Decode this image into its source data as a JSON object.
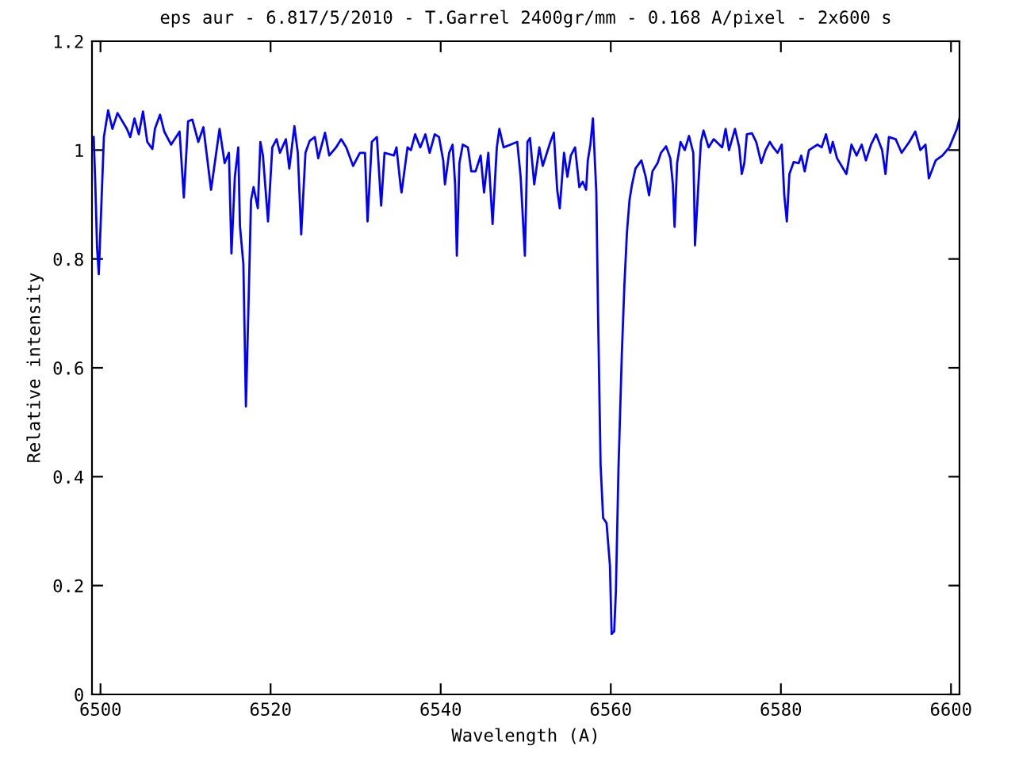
{
  "chart_data": {
    "type": "line",
    "title": "eps aur - 6.817/5/2010 - T.Garrel 2400gr/mm - 0.168 A/pixel - 2x600 s",
    "xlabel": "Wavelength (A)",
    "ylabel": "Relative intensity",
    "x": [
      6499.2,
      6499.4,
      6499.6,
      6499.8,
      6500.1,
      6500.4,
      6500.9,
      6501.4,
      6502.0,
      6503.1,
      6503.5,
      6504.0,
      6504.5,
      6505.0,
      6505.5,
      6506.1,
      6506.4,
      6507.0,
      6507.5,
      6508.3,
      6509.3,
      6509.8,
      6510.3,
      6510.8,
      6511.5,
      6512.1,
      6513.0,
      6514.0,
      6514.6,
      6515.1,
      6515.4,
      6515.8,
      6516.2,
      6516.4,
      6516.8,
      6517.1,
      6517.4,
      6517.7,
      6518.0,
      6518.5,
      6518.8,
      6519.1,
      6519.7,
      6520.2,
      6520.7,
      6521.1,
      6521.8,
      6522.2,
      6522.8,
      6523.2,
      6523.6,
      6524.1,
      6524.6,
      6525.2,
      6525.6,
      6526.4,
      6526.9,
      6527.7,
      6528.3,
      6528.9,
      6529.7,
      6530.5,
      6531.1,
      6531.4,
      6531.9,
      6532.5,
      6533.0,
      6533.4,
      6534.5,
      6534.8,
      6535.3,
      6535.4,
      6536.1,
      6536.5,
      6537.0,
      6537.6,
      6538.2,
      6538.7,
      6539.3,
      6539.8,
      6540.3,
      6540.5,
      6541.0,
      6541.4,
      6541.7,
      6541.9,
      6542.2,
      6542.6,
      6543.2,
      6543.6,
      6544.1,
      6544.7,
      6545.1,
      6545.6,
      6546.1,
      6546.6,
      6546.9,
      6547.4,
      6548.2,
      6549.0,
      6549.4,
      6549.9,
      6550.2,
      6550.5,
      6551.0,
      6551.6,
      6552.0,
      6552.9,
      6553.3,
      6553.7,
      6554.0,
      6554.5,
      6554.9,
      6555.3,
      6555.8,
      6556.3,
      6556.7,
      6557.1,
      6557.3,
      6557.6,
      6557.9,
      6558.3,
      6558.5,
      6558.8,
      6559.1,
      6559.5,
      6559.9,
      6560.1,
      6560.4,
      6560.6,
      6560.9,
      6561.3,
      6561.6,
      6561.9,
      6562.2,
      6562.5,
      6562.9,
      6563.6,
      6564.1,
      6564.5,
      6564.9,
      6565.5,
      6565.9,
      6566.5,
      6567.0,
      6567.3,
      6567.5,
      6567.8,
      6568.2,
      6568.7,
      6569.2,
      6569.7,
      6569.8,
      6569.9,
      6570.3,
      6570.6,
      6570.9,
      6571.5,
      6572.1,
      6573.1,
      6573.5,
      6573.9,
      6574.6,
      6575.1,
      6575.4,
      6575.7,
      6576.0,
      6576.6,
      6577.1,
      6577.7,
      6578.2,
      6578.7,
      6579.1,
      6579.6,
      6580.1,
      6580.4,
      6580.7,
      6581.0,
      6581.5,
      6582.1,
      6582.4,
      6582.8,
      6583.3,
      6584.3,
      6584.8,
      6585.3,
      6585.8,
      6586.1,
      6586.6,
      6587.7,
      6588.3,
      6588.9,
      6589.5,
      6590.0,
      6590.6,
      6591.2,
      6591.9,
      6592.3,
      6592.7,
      6593.5,
      6594.2,
      6595.1,
      6595.8,
      6596.4,
      6597.0,
      6597.4,
      6598.2,
      6599.0,
      6599.8,
      6600.3,
      6600.7,
      6601.0
    ],
    "series": [
      {
        "color": "#0000ff",
        "values": [
          1.024,
          0.933,
          0.82,
          0.772,
          0.898,
          1.024,
          1.073,
          1.039,
          1.068,
          1.039,
          1.024,
          1.058,
          1.029,
          1.071,
          1.015,
          1.002,
          1.039,
          1.065,
          1.034,
          1.01,
          1.034,
          0.913,
          1.053,
          1.056,
          1.015,
          1.042,
          0.927,
          1.039,
          0.976,
          0.995,
          0.81,
          0.951,
          1.005,
          0.86,
          0.791,
          0.529,
          0.713,
          0.908,
          0.932,
          0.893,
          1.015,
          0.99,
          0.869,
          1.005,
          1.02,
          0.995,
          1.02,
          0.966,
          1.044,
          0.995,
          0.845,
          0.995,
          1.017,
          1.024,
          0.985,
          1.032,
          0.99,
          1.005,
          1.02,
          1.005,
          0.971,
          0.995,
          0.995,
          0.869,
          1.015,
          1.024,
          0.898,
          0.995,
          0.99,
          1.005,
          0.932,
          0.922,
          1.005,
          1.0,
          1.029,
          1.005,
          1.029,
          0.995,
          1.029,
          1.024,
          0.981,
          0.937,
          0.995,
          1.01,
          0.937,
          0.806,
          0.976,
          1.01,
          1.005,
          0.961,
          0.961,
          0.99,
          0.922,
          0.995,
          0.864,
          1.005,
          1.039,
          1.005,
          1.01,
          1.015,
          0.951,
          0.806,
          1.015,
          1.022,
          0.937,
          1.005,
          0.971,
          1.015,
          1.032,
          0.927,
          0.893,
          0.995,
          0.951,
          0.99,
          1.005,
          0.932,
          0.942,
          0.927,
          0.981,
          1.01,
          1.058,
          0.922,
          0.703,
          0.422,
          0.324,
          0.315,
          0.237,
          0.111,
          0.116,
          0.189,
          0.412,
          0.626,
          0.752,
          0.849,
          0.908,
          0.937,
          0.966,
          0.981,
          0.951,
          0.917,
          0.961,
          0.976,
          0.995,
          1.007,
          0.985,
          0.937,
          0.859,
          0.976,
          1.015,
          1.0,
          1.026,
          0.995,
          0.922,
          0.825,
          0.937,
          1.015,
          1.036,
          1.005,
          1.02,
          1.005,
          1.039,
          1.0,
          1.039,
          1.005,
          0.956,
          0.976,
          1.029,
          1.031,
          1.015,
          0.976,
          1.0,
          1.015,
          1.005,
          0.995,
          1.01,
          0.917,
          0.869,
          0.956,
          0.978,
          0.976,
          0.99,
          0.961,
          1.0,
          1.01,
          1.005,
          1.029,
          0.995,
          1.015,
          0.985,
          0.956,
          1.01,
          0.99,
          1.01,
          0.981,
          1.01,
          1.029,
          1.0,
          0.956,
          1.024,
          1.02,
          0.995,
          1.015,
          1.034,
          1.0,
          1.01,
          0.948,
          0.981,
          0.99,
          1.005,
          1.024,
          1.039,
          1.058
        ]
      }
    ],
    "xlim": [
      6499,
      6601
    ],
    "xticks": [
      6500,
      6520,
      6540,
      6560,
      6580,
      6600
    ],
    "ylim": [
      0,
      1.2
    ],
    "yticks": [
      0,
      0.2,
      0.4,
      0.6,
      0.8,
      1,
      1.2
    ],
    "grid": false,
    "legend": false,
    "marker": "none",
    "line_style": "solid"
  }
}
